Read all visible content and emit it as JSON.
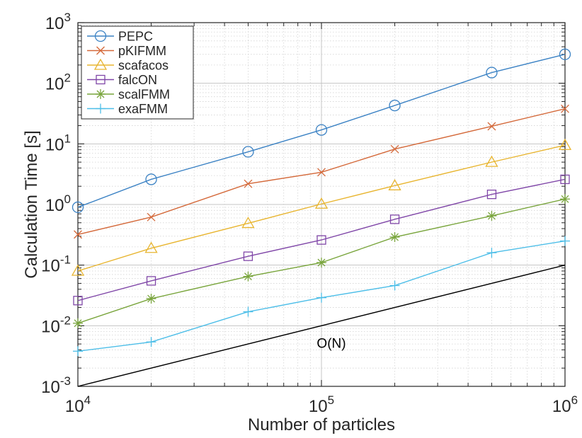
{
  "chart_data": {
    "type": "line",
    "xlabel": "Number of particles",
    "ylabel": "Calculation Time [s]",
    "xscale": "log",
    "yscale": "log",
    "xlim": [
      10000,
      1000000
    ],
    "ylim": [
      0.001,
      1000
    ],
    "grid": "major and minor",
    "legend_position": "top-left",
    "x_ticks": [
      {
        "value": 10000,
        "base": "10",
        "exp": "4"
      },
      {
        "value": 100000,
        "base": "10",
        "exp": "5"
      },
      {
        "value": 1000000,
        "base": "10",
        "exp": "6"
      }
    ],
    "y_ticks": [
      {
        "value": 0.001,
        "base": "10",
        "exp": "-3"
      },
      {
        "value": 0.01,
        "base": "10",
        "exp": "-2"
      },
      {
        "value": 0.1,
        "base": "10",
        "exp": "-1"
      },
      {
        "value": 1,
        "base": "10",
        "exp": "0"
      },
      {
        "value": 10,
        "base": "10",
        "exp": "1"
      },
      {
        "value": 100,
        "base": "10",
        "exp": "2"
      },
      {
        "value": 1000,
        "base": "10",
        "exp": "3"
      }
    ],
    "x": [
      10000,
      20000,
      50000,
      100000,
      200000,
      500000,
      1000000
    ],
    "series": [
      {
        "name": "PEPC",
        "color": "#3b82c4",
        "marker": "circle",
        "values": [
          0.9,
          2.6,
          7.4,
          17,
          43,
          150,
          300
        ]
      },
      {
        "name": "pKIFMM",
        "color": "#d4693a",
        "marker": "x",
        "values": [
          0.32,
          0.62,
          2.2,
          3.4,
          8.2,
          19.5,
          38
        ]
      },
      {
        "name": "scafacos",
        "color": "#e8b530",
        "marker": "triangle",
        "values": [
          0.08,
          0.19,
          0.49,
          1.02,
          2.05,
          5.0,
          9.5
        ]
      },
      {
        "name": "falcON",
        "color": "#8047a8",
        "marker": "square",
        "values": [
          0.026,
          0.055,
          0.14,
          0.26,
          0.57,
          1.47,
          2.6
        ]
      },
      {
        "name": "scalFMM",
        "color": "#79a53c",
        "marker": "star",
        "values": [
          0.011,
          0.028,
          0.065,
          0.11,
          0.29,
          0.65,
          1.23
        ]
      },
      {
        "name": "exaFMM",
        "color": "#4dbee8",
        "marker": "plus",
        "values": [
          0.0038,
          0.0054,
          0.017,
          0.029,
          0.046,
          0.16,
          0.25
        ]
      }
    ],
    "reference_line": {
      "label": "O(N)",
      "color": "#000000",
      "x": [
        10000,
        1000000
      ],
      "y": [
        0.001,
        0.1
      ],
      "label_position": [
        100000,
        0.0043
      ]
    }
  }
}
